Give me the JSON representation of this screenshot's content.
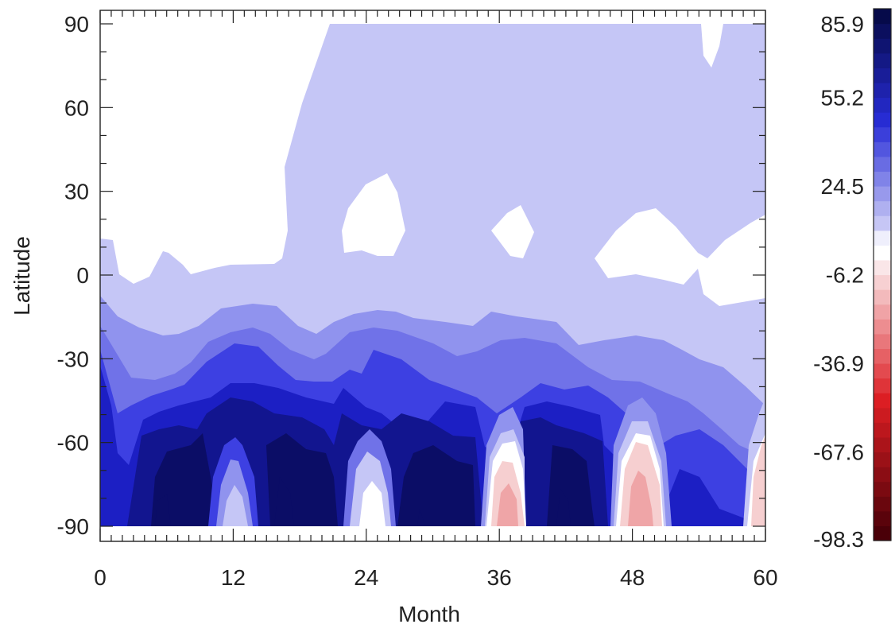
{
  "chart_data": {
    "type": "heatmap",
    "subtype": "filled-contour",
    "title": "",
    "xlabel": "Month",
    "ylabel": "Latitude",
    "xlim": [
      0,
      60
    ],
    "ylim": [
      -90,
      90
    ],
    "xticks": [
      "0",
      "12",
      "24",
      "36",
      "48",
      "60"
    ],
    "yticks": [
      "90",
      "60",
      "30",
      "0",
      "-30",
      "-60",
      "-90"
    ],
    "colorbar": {
      "min": -98.3,
      "max": 85.9,
      "tick_labels": [
        "85.9",
        "55.2",
        "24.5",
        "-6.2",
        "-36.9",
        "-67.6",
        "-98.3"
      ],
      "levels_count": 36,
      "low_color": "#4a0008",
      "mid_color": "#ffffff",
      "high_color": "#060a4a"
    },
    "contour_colors": {
      "level_pos_1": "#c5c6f6",
      "level_pos_2": "#9093ee",
      "level_pos_3": "#7072e8",
      "level_pos_4": "#3d40e2",
      "level_pos_5": "#1c1fc4",
      "level_pos_6": "#12158f",
      "level_pos_7": "#0b0d66",
      "level_neg_1": "#f6cfd0",
      "level_neg_2": "#efa5a7"
    }
  }
}
